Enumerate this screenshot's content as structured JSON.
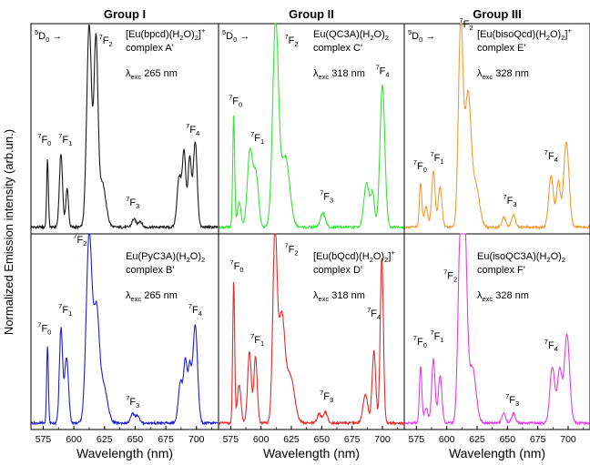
{
  "chart_data": {
    "type": "line",
    "ylabel": "Normalized Emission intensity (arb.un.)",
    "xlabel": "Wavelength (nm)",
    "xlim": [
      565,
      718
    ],
    "xticks": [
      "575",
      "600",
      "625",
      "650",
      "675",
      "700"
    ],
    "transition_marker": "5D0 →",
    "groups": [
      {
        "title": "Group I",
        "panels": [
          {
            "position": "top",
            "complex_formula": "[Eu(bpcd)(H2O)2]+",
            "complex_name": "complex A'",
            "excitation": "λexc 265 nm",
            "color": "#1a1a1a",
            "peaks": [
              {
                "x": 578.5,
                "y": 0.33,
                "w": 0.7
              },
              {
                "x": 589.5,
                "y": 0.36,
                "w": 1.3
              },
              {
                "x": 594.5,
                "y": 0.19,
                "w": 1.1
              },
              {
                "x": 612.5,
                "y": 1.0,
                "w": 2.0
              },
              {
                "x": 618.0,
                "y": 0.88,
                "w": 1.6
              },
              {
                "x": 623.0,
                "y": 0.22,
                "w": 3.0
              },
              {
                "x": 649.0,
                "y": 0.04,
                "w": 1.6
              },
              {
                "x": 654.0,
                "y": 0.03,
                "w": 1.5
              },
              {
                "x": 686.0,
                "y": 0.25,
                "w": 1.8
              },
              {
                "x": 690.0,
                "y": 0.36,
                "w": 1.4
              },
              {
                "x": 694.5,
                "y": 0.34,
                "w": 1.4
              },
              {
                "x": 699.0,
                "y": 0.42,
                "w": 1.6
              }
            ],
            "labels": [
              {
                "term": "F",
                "sub": "0",
                "x": 576,
                "y": 0.43
              },
              {
                "term": "F",
                "sub": "1",
                "x": 593,
                "y": 0.43
              },
              {
                "term": "F",
                "sub": "2",
                "x": 626,
                "y": 0.92
              },
              {
                "term": "F",
                "sub": "3",
                "x": 648,
                "y": 0.12
              },
              {
                "term": "F",
                "sub": "4",
                "x": 697,
                "y": 0.48
              }
            ]
          },
          {
            "position": "bottom",
            "complex_formula": "Eu(PyC3A)(H2O)2",
            "complex_name": "complex B'",
            "excitation": "λexc 265 nm",
            "color": "#1f1fcc",
            "peaks": [
              {
                "x": 578.5,
                "y": 0.41,
                "w": 0.7
              },
              {
                "x": 589.5,
                "y": 0.5,
                "w": 1.3
              },
              {
                "x": 594.0,
                "y": 0.35,
                "w": 1.6
              },
              {
                "x": 612.5,
                "y": 1.0,
                "w": 2.4
              },
              {
                "x": 618.5,
                "y": 0.55,
                "w": 2.2
              },
              {
                "x": 624.0,
                "y": 0.2,
                "w": 3.2
              },
              {
                "x": 648.0,
                "y": 0.05,
                "w": 1.6
              },
              {
                "x": 652.0,
                "y": 0.04,
                "w": 1.5
              },
              {
                "x": 687.0,
                "y": 0.22,
                "w": 1.8
              },
              {
                "x": 691.0,
                "y": 0.32,
                "w": 1.4
              },
              {
                "x": 694.5,
                "y": 0.28,
                "w": 1.4
              },
              {
                "x": 699.0,
                "y": 0.52,
                "w": 1.9
              }
            ],
            "labels": [
              {
                "term": "F",
                "sub": "0",
                "x": 576,
                "y": 0.5
              },
              {
                "term": "F",
                "sub": "1",
                "x": 593,
                "y": 0.6
              },
              {
                "term": "F",
                "sub": "2",
                "x": 605,
                "y": 0.97
              },
              {
                "term": "F",
                "sub": "3",
                "x": 648,
                "y": 0.11
              },
              {
                "term": "F",
                "sub": "4",
                "x": 699,
                "y": 0.6
              }
            ]
          }
        ]
      },
      {
        "title": "Group II",
        "panels": [
          {
            "position": "top",
            "complex_formula": "Eu(QC3A)(H2O)2",
            "complex_name": "complex C'",
            "excitation": "λexc 318 nm",
            "color": "#33e633",
            "peaks": [
              {
                "x": 577.5,
                "y": 0.55,
                "w": 0.8
              },
              {
                "x": 582.0,
                "y": 0.12,
                "w": 1.5
              },
              {
                "x": 591.0,
                "y": 0.38,
                "w": 2.2
              },
              {
                "x": 596.0,
                "y": 0.25,
                "w": 2.0
              },
              {
                "x": 612.0,
                "y": 1.0,
                "w": 2.4
              },
              {
                "x": 620.0,
                "y": 0.35,
                "w": 3.5
              },
              {
                "x": 651.0,
                "y": 0.07,
                "w": 2.0
              },
              {
                "x": 687.0,
                "y": 0.22,
                "w": 2.2
              },
              {
                "x": 692.0,
                "y": 0.16,
                "w": 1.5
              },
              {
                "x": 700.0,
                "y": 0.7,
                "w": 2.0
              }
            ],
            "labels": [
              {
                "term": "F",
                "sub": "0",
                "x": 579,
                "y": 0.62
              },
              {
                "term": "F",
                "sub": "1",
                "x": 597,
                "y": 0.44
              },
              {
                "term": "F",
                "sub": "2",
                "x": 625,
                "y": 0.92
              },
              {
                "term": "F",
                "sub": "3",
                "x": 654,
                "y": 0.15
              },
              {
                "term": "F",
                "sub": "4",
                "x": 700,
                "y": 0.77
              }
            ]
          },
          {
            "position": "bottom",
            "complex_formula": "[Eu(bQcd)(H2O)2]+",
            "complex_name": "complex D'",
            "excitation": "λexc 318 nm",
            "color": "#e62a2a",
            "peaks": [
              {
                "x": 577.5,
                "y": 0.75,
                "w": 0.8
              },
              {
                "x": 582.0,
                "y": 0.2,
                "w": 1.5
              },
              {
                "x": 590.5,
                "y": 0.38,
                "w": 1.5
              },
              {
                "x": 595.5,
                "y": 0.35,
                "w": 1.4
              },
              {
                "x": 611.5,
                "y": 1.0,
                "w": 1.8
              },
              {
                "x": 617.0,
                "y": 0.55,
                "w": 2.5
              },
              {
                "x": 624.0,
                "y": 0.25,
                "w": 3.5
              },
              {
                "x": 648.0,
                "y": 0.05,
                "w": 1.6
              },
              {
                "x": 653.0,
                "y": 0.06,
                "w": 1.6
              },
              {
                "x": 686.0,
                "y": 0.15,
                "w": 2.0
              },
              {
                "x": 693.0,
                "y": 0.38,
                "w": 1.5
              },
              {
                "x": 699.5,
                "y": 0.88,
                "w": 1.3
              }
            ],
            "labels": [
              {
                "term": "F",
                "sub": "0",
                "x": 580,
                "y": 0.83
              },
              {
                "term": "F",
                "sub": "1",
                "x": 597,
                "y": 0.44
              },
              {
                "term": "F",
                "sub": "2",
                "x": 625,
                "y": 0.92
              },
              {
                "term": "F",
                "sub": "3",
                "x": 654,
                "y": 0.14
              },
              {
                "term": "F",
                "sub": "4",
                "x": 693,
                "y": 0.58
              }
            ]
          }
        ]
      },
      {
        "title": "Group III",
        "panels": [
          {
            "position": "top",
            "complex_formula": "[Eu(bisoQcd)(H2O)2]+",
            "complex_name": "complex E'",
            "excitation": "λexc 328 nm",
            "color": "#f29a36",
            "peaks": [
              {
                "x": 578.5,
                "y": 0.22,
                "w": 1.0
              },
              {
                "x": 583.0,
                "y": 0.1,
                "w": 1.5
              },
              {
                "x": 589.0,
                "y": 0.28,
                "w": 1.4
              },
              {
                "x": 594.5,
                "y": 0.2,
                "w": 1.5
              },
              {
                "x": 611.5,
                "y": 1.0,
                "w": 1.9
              },
              {
                "x": 617.5,
                "y": 0.65,
                "w": 2.5
              },
              {
                "x": 624.0,
                "y": 0.2,
                "w": 3.0
              },
              {
                "x": 647.0,
                "y": 0.05,
                "w": 1.6
              },
              {
                "x": 655.0,
                "y": 0.06,
                "w": 1.6
              },
              {
                "x": 686.0,
                "y": 0.25,
                "w": 2.0
              },
              {
                "x": 692.0,
                "y": 0.22,
                "w": 1.6
              },
              {
                "x": 698.5,
                "y": 0.42,
                "w": 2.2
              }
            ],
            "labels": [
              {
                "term": "F",
                "sub": "0",
                "x": 578,
                "y": 0.3
              },
              {
                "term": "F",
                "sub": "1",
                "x": 592,
                "y": 0.34
              },
              {
                "term": "F",
                "sub": "2",
                "x": 616,
                "y": 1.0
              },
              {
                "term": "F",
                "sub": "3",
                "x": 652,
                "y": 0.13
              },
              {
                "term": "F",
                "sub": "4",
                "x": 686,
                "y": 0.35
              }
            ]
          },
          {
            "position": "bottom",
            "complex_formula": "Eu(isoQC3A)(H2O)2",
            "complex_name": "complex F'",
            "excitation": "λexc 328 nm",
            "color": "#e63be6",
            "peaks": [
              {
                "x": 578.5,
                "y": 0.3,
                "w": 1.0
              },
              {
                "x": 583.0,
                "y": 0.08,
                "w": 1.5
              },
              {
                "x": 589.0,
                "y": 0.34,
                "w": 1.4
              },
              {
                "x": 594.5,
                "y": 0.25,
                "w": 1.5
              },
              {
                "x": 611.0,
                "y": 0.95,
                "w": 1.8
              },
              {
                "x": 615.0,
                "y": 0.95,
                "w": 1.8
              },
              {
                "x": 621.0,
                "y": 0.3,
                "w": 3.0
              },
              {
                "x": 647.0,
                "y": 0.05,
                "w": 1.6
              },
              {
                "x": 655.0,
                "y": 0.05,
                "w": 1.6
              },
              {
                "x": 687.0,
                "y": 0.3,
                "w": 2.0
              },
              {
                "x": 693.0,
                "y": 0.28,
                "w": 1.8
              },
              {
                "x": 699.0,
                "y": 0.47,
                "w": 2.2
              }
            ],
            "labels": [
              {
                "term": "F",
                "sub": "0",
                "x": 578,
                "y": 0.43
              },
              {
                "term": "F",
                "sub": "1",
                "x": 592,
                "y": 0.46
              },
              {
                "term": "F",
                "sub": "2",
                "x": 603,
                "y": 0.78
              },
              {
                "term": "F",
                "sub": "3",
                "x": 654,
                "y": 0.12
              },
              {
                "term": "F",
                "sub": "4",
                "x": 686,
                "y": 0.41
              }
            ]
          }
        ]
      }
    ]
  }
}
